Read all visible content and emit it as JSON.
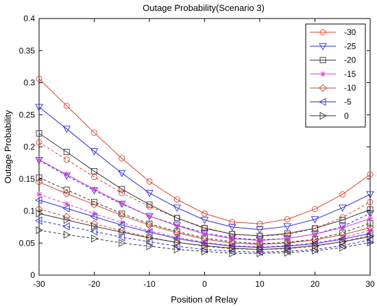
{
  "chart_data": {
    "type": "line",
    "title": "Outage Probability(Scenario 3)",
    "xlabel": "Position of Relay",
    "ylabel": "Outage Probability",
    "xlim": [
      -30,
      30
    ],
    "ylim": [
      0,
      0.4
    ],
    "xticks": [
      -30,
      -20,
      -10,
      0,
      10,
      20,
      30
    ],
    "yticks": [
      0,
      0.05,
      0.1,
      0.15,
      0.2,
      0.25,
      0.3,
      0.35,
      0.4
    ],
    "ytick_labels": [
      "0",
      "0.05",
      "0.1",
      "0.15",
      "0.2",
      "0.25",
      "0.3",
      "0.35",
      "0.4"
    ],
    "grid": false,
    "legend_position": "top-right",
    "x": [
      -30,
      -25,
      -20,
      -15,
      -10,
      -5,
      0,
      5,
      10,
      15,
      20,
      25,
      30
    ],
    "series": [
      {
        "name": "-30",
        "color": "#d9412f",
        "marker": "circle",
        "solid": [
          0.306,
          0.264,
          0.222,
          0.182,
          0.146,
          0.118,
          0.096,
          0.083,
          0.08,
          0.087,
          0.103,
          0.126,
          0.157
        ],
        "dashed": [
          0.207,
          0.18,
          0.153,
          0.128,
          0.107,
          0.089,
          0.074,
          0.064,
          0.061,
          0.063,
          0.073,
          0.09,
          0.114
        ]
      },
      {
        "name": "-25",
        "color": "#2a2ad8",
        "marker": "triangle-down",
        "solid": [
          0.262,
          0.228,
          0.193,
          0.159,
          0.128,
          0.105,
          0.086,
          0.075,
          0.071,
          0.076,
          0.087,
          0.105,
          0.126
        ],
        "dashed": [
          0.179,
          0.155,
          0.132,
          0.111,
          0.092,
          0.078,
          0.066,
          0.058,
          0.055,
          0.057,
          0.064,
          0.076,
          0.096
        ]
      },
      {
        "name": "-20",
        "color": "#333333",
        "marker": "square",
        "solid": [
          0.221,
          0.192,
          0.162,
          0.134,
          0.11,
          0.089,
          0.073,
          0.064,
          0.061,
          0.065,
          0.073,
          0.086,
          0.102
        ],
        "dashed": [
          0.152,
          0.133,
          0.114,
          0.096,
          0.08,
          0.068,
          0.058,
          0.052,
          0.049,
          0.051,
          0.056,
          0.066,
          0.081
        ]
      },
      {
        "name": "-15",
        "color": "#d33ad3",
        "marker": "star",
        "solid": [
          0.18,
          0.157,
          0.134,
          0.112,
          0.092,
          0.077,
          0.064,
          0.057,
          0.054,
          0.057,
          0.064,
          0.074,
          0.088
        ],
        "dashed": [
          0.126,
          0.111,
          0.096,
          0.082,
          0.069,
          0.059,
          0.051,
          0.046,
          0.044,
          0.046,
          0.05,
          0.058,
          0.07
        ]
      },
      {
        "name": "-10",
        "color": "#c2492c",
        "marker": "diamond",
        "solid": [
          0.145,
          0.127,
          0.11,
          0.093,
          0.078,
          0.066,
          0.056,
          0.05,
          0.048,
          0.05,
          0.055,
          0.063,
          0.074
        ],
        "dashed": [
          0.103,
          0.091,
          0.08,
          0.069,
          0.059,
          0.051,
          0.045,
          0.041,
          0.04,
          0.041,
          0.045,
          0.052,
          0.062
        ]
      },
      {
        "name": "-5",
        "color": "#2a2ad8",
        "marker": "triangle-left",
        "solid": [
          0.117,
          0.104,
          0.091,
          0.078,
          0.067,
          0.057,
          0.05,
          0.045,
          0.043,
          0.045,
          0.049,
          0.056,
          0.065
        ],
        "dashed": [
          0.085,
          0.076,
          0.068,
          0.059,
          0.052,
          0.045,
          0.04,
          0.037,
          0.036,
          0.037,
          0.04,
          0.046,
          0.055
        ]
      },
      {
        "name": "0",
        "color": "#333333",
        "marker": "triangle-right",
        "solid": [
          0.096,
          0.086,
          0.076,
          0.067,
          0.058,
          0.051,
          0.046,
          0.042,
          0.04,
          0.042,
          0.046,
          0.052,
          0.06
        ],
        "dashed": [
          0.07,
          0.063,
          0.057,
          0.05,
          0.045,
          0.04,
          0.037,
          0.034,
          0.034,
          0.035,
          0.038,
          0.043,
          0.051
        ]
      }
    ]
  }
}
